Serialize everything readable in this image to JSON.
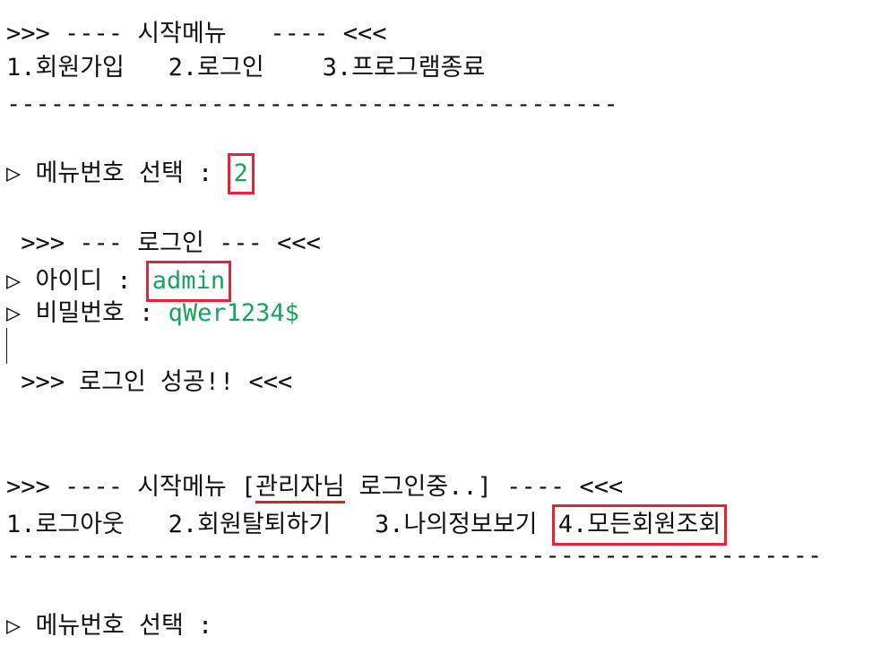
{
  "lines": {
    "start_menu_header": ">>> ---- 시작메뉴   ---- <<<",
    "start_menu_options": "1.회원가입   2.로그인    3.프로그램종료",
    "separator_short": "------------------------------------------",
    "menu_prompt_1": "▷ 메뉴번호 선택 : ",
    "menu_input_1": "2",
    "login_header": " >>> --- 로그인 --- <<<",
    "id_prompt": "▷ 아이디 : ",
    "id_value": "admin",
    "pw_prompt": "▷ 비밀번호 : ",
    "pw_value": "qWer1234$",
    "login_success": " >>> 로그인 성공!! <<<",
    "admin_menu_header_pre": ">>> ---- 시작메뉴 [",
    "admin_menu_header_role": "관리자님",
    "admin_menu_header_post": " 로그인중..] ---- <<<",
    "admin_menu_options": "1.로그아웃   2.회원탈퇴하기   3.나의정보보기 ",
    "admin_menu_option_4": "4.모든회원조회",
    "separator_long": "--------------------------------------------------------",
    "menu_prompt_2": "▷ 메뉴번호 선택 :"
  },
  "colors": {
    "text": "#111111",
    "input_text": "#1aa260",
    "highlight_box": "#e32636"
  }
}
